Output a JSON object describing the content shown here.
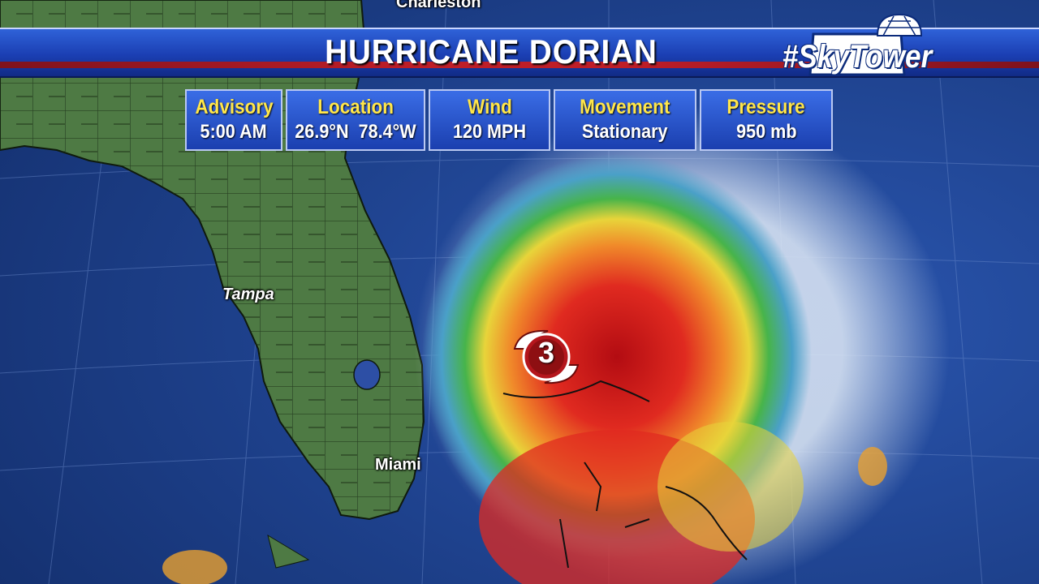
{
  "header": {
    "title": "HURRICANE DORIAN",
    "logo_text": "#SkyTower"
  },
  "info_panel": [
    {
      "label": "Advisory",
      "value": "5:00 AM"
    },
    {
      "label": "Location",
      "value": "26.9°N  78.4°W"
    },
    {
      "label": "Wind",
      "value": "120 MPH"
    },
    {
      "label": "Movement",
      "value": "Stationary"
    },
    {
      "label": "Pressure",
      "value": "950 mb"
    }
  ],
  "map": {
    "cities": [
      "Charleston",
      "Tampa",
      "Miami"
    ],
    "storm_category": "3"
  },
  "colors": {
    "banner_blue": "#1b3fb3",
    "label_yellow": "#ffe64a",
    "accent_red": "#d21b1b",
    "land_green": "#4e7a44",
    "ocean_blue": "#1c3f8f"
  }
}
